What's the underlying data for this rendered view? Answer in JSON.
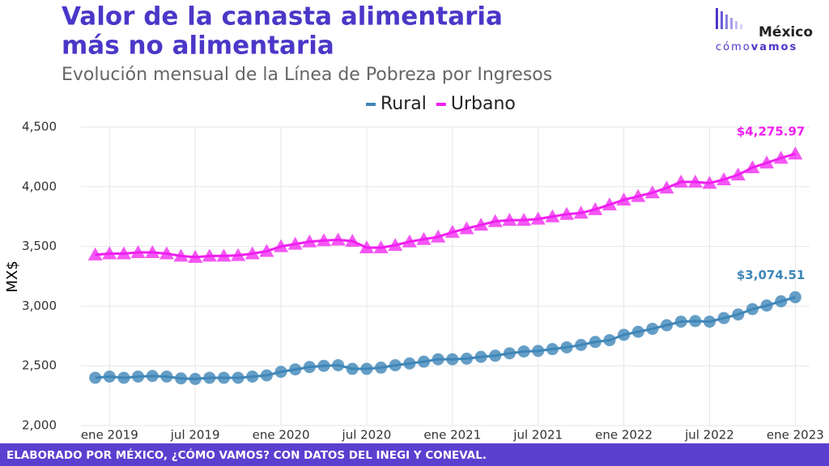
{
  "chart_data": {
    "type": "line",
    "title": "Valor de la canasta alimentaria más no alimentaria",
    "subtitle": "Evolución mensual de la Línea de Pobreza por Ingresos",
    "y_label": "MX$",
    "footer": "ELABORADO POR MÉXICO, ¿CÓMO VAMOS? CON DATOS DEL INEGI Y CONEVAL.",
    "logo": {
      "top": "México",
      "bottom_light": "cómo",
      "bottom_bold": "vamos"
    },
    "legend_position": "top",
    "grid": true,
    "x": [
      "2018-12",
      "2019-01",
      "2019-02",
      "2019-03",
      "2019-04",
      "2019-05",
      "2019-06",
      "2019-07",
      "2019-08",
      "2019-09",
      "2019-10",
      "2019-11",
      "2019-12",
      "2020-01",
      "2020-02",
      "2020-03",
      "2020-04",
      "2020-05",
      "2020-06",
      "2020-07",
      "2020-08",
      "2020-09",
      "2020-10",
      "2020-11",
      "2020-12",
      "2021-01",
      "2021-02",
      "2021-03",
      "2021-04",
      "2021-05",
      "2021-06",
      "2021-07",
      "2021-08",
      "2021-09",
      "2021-10",
      "2021-11",
      "2021-12",
      "2022-01",
      "2022-02",
      "2022-03",
      "2022-04",
      "2022-05",
      "2022-06",
      "2022-07",
      "2022-08",
      "2022-09",
      "2022-10",
      "2022-11",
      "2022-12",
      "2023-01"
    ],
    "xlim": [
      "2018-11",
      "2023-02"
    ],
    "xticks": [
      {
        "value": "2019-01",
        "label": "ene 2019"
      },
      {
        "value": "2019-07",
        "label": "jul 2019"
      },
      {
        "value": "2020-01",
        "label": "ene 2020"
      },
      {
        "value": "2020-07",
        "label": "jul 2020"
      },
      {
        "value": "2021-01",
        "label": "ene 2021"
      },
      {
        "value": "2021-07",
        "label": "jul 2021"
      },
      {
        "value": "2022-01",
        "label": "ene 2022"
      },
      {
        "value": "2022-07",
        "label": "jul 2022"
      },
      {
        "value": "2023-01",
        "label": "ene 2023"
      }
    ],
    "ylim": [
      2000,
      4500
    ],
    "yticks": [
      {
        "value": 2000,
        "label": "2,000"
      },
      {
        "value": 2500,
        "label": "2,500"
      },
      {
        "value": 3000,
        "label": "3,000"
      },
      {
        "value": 3500,
        "label": "3,500"
      },
      {
        "value": 4000,
        "label": "4,000"
      },
      {
        "value": 4500,
        "label": "4,500"
      }
    ],
    "series": [
      {
        "name": "Rural",
        "color": "#3f86b8",
        "marker": "circle",
        "values": [
          2400,
          2410,
          2400,
          2410,
          2415,
          2410,
          2395,
          2390,
          2400,
          2400,
          2400,
          2410,
          2420,
          2450,
          2470,
          2490,
          2500,
          2505,
          2475,
          2475,
          2485,
          2505,
          2520,
          2535,
          2555,
          2555,
          2560,
          2575,
          2585,
          2605,
          2620,
          2625,
          2640,
          2655,
          2675,
          2700,
          2715,
          2760,
          2785,
          2810,
          2840,
          2870,
          2875,
          2870,
          2900,
          2930,
          2975,
          3005,
          3040,
          3074.51
        ],
        "value_labels": {
          "49": "$3,074.51"
        }
      },
      {
        "name": "Urbano",
        "color": "#f01ff0",
        "marker": "triangle",
        "values": [
          3430,
          3440,
          3440,
          3450,
          3450,
          3440,
          3420,
          3410,
          3420,
          3420,
          3425,
          3440,
          3460,
          3500,
          3520,
          3540,
          3550,
          3555,
          3545,
          3490,
          3490,
          3510,
          3540,
          3560,
          3580,
          3620,
          3650,
          3680,
          3710,
          3720,
          3720,
          3730,
          3750,
          3770,
          3780,
          3810,
          3850,
          3890,
          3920,
          3950,
          3990,
          4040,
          4040,
          4030,
          4060,
          4100,
          4160,
          4200,
          4240,
          4275.97
        ],
        "value_labels": {
          "49": "$4,275.97"
        }
      }
    ]
  }
}
